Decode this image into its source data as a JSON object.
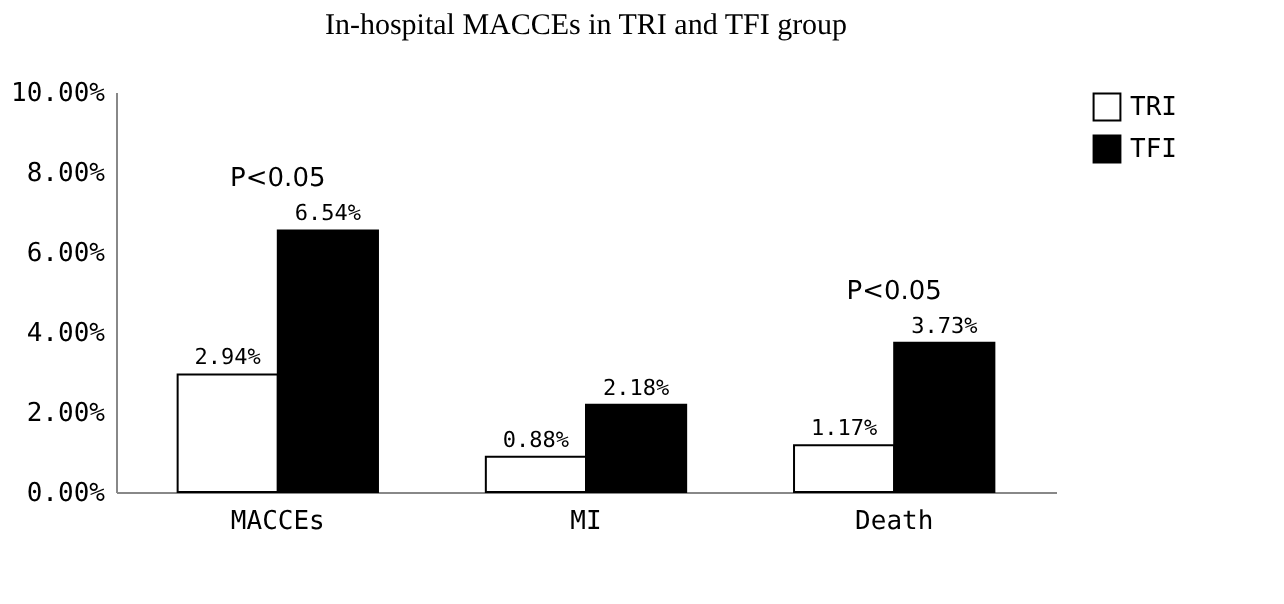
{
  "chart_data": {
    "type": "bar",
    "title": "In-hospital MACCEs in TRI and TFI group",
    "categories": [
      "MACCEs",
      "MI",
      "Death"
    ],
    "series": [
      {
        "name": "TRI",
        "color": "#ffffff",
        "values": [
          2.94,
          0.88,
          1.17
        ],
        "value_labels": [
          "2.94%",
          "0.88%",
          "1.17%"
        ]
      },
      {
        "name": "TFI",
        "color": "#000000",
        "values": [
          6.54,
          2.18,
          3.73
        ],
        "value_labels": [
          "6.54%",
          "2.18%",
          "3.73%"
        ]
      }
    ],
    "ylim": [
      0,
      10
    ],
    "yticks": [
      {
        "value": 0,
        "label": "0.00%"
      },
      {
        "value": 2,
        "label": "2.00%"
      },
      {
        "value": 4,
        "label": "4.00%"
      },
      {
        "value": 6,
        "label": "6.00%"
      },
      {
        "value": 8,
        "label": "8.00%"
      },
      {
        "value": 10,
        "label": "10.00%"
      }
    ],
    "annotations": [
      {
        "text": "P<0.05",
        "x": "MACCEs",
        "y": 6.54
      },
      {
        "text": "P<0.05",
        "x": "Death",
        "y": 3.73
      }
    ],
    "grid": false,
    "legend": "right"
  }
}
